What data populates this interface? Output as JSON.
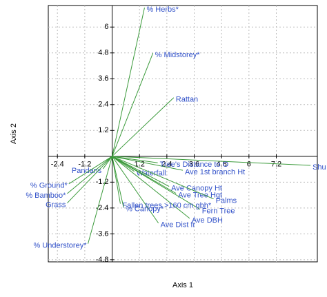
{
  "chart_data": {
    "type": "biplot",
    "x_label": "Axis 1",
    "y_label": "Axis 2",
    "labels": [
      "% Herbs*",
      "% Midstorey*",
      "Rattan",
      "Shu",
      "Ave 1st branch Ht",
      "Tree's Distance to O",
      "Waterfall",
      "Pandans",
      "Ave Canopy Ht",
      "Ave Tree Hgt",
      "Palms",
      "Fern Tree",
      "Ave DBH",
      "Ave Dist fr",
      "Fallen trees >160 cm gbh*",
      "% Canopy*",
      "% Ground*",
      "% Bamboo*",
      "Grass",
      "% Understorey*"
    ],
    "x": [
      1.42,
      1.79,
      2.7,
      8.7,
      3.1,
      2.0,
      0.97,
      -0.4,
      2.5,
      2.8,
      4.45,
      3.85,
      3.4,
      2.03,
      0.36,
      0.5,
      -1.9,
      -1.97,
      -1.97,
      -1.06
    ],
    "y": [
      6.9,
      4.79,
      2.72,
      -0.42,
      -0.65,
      -0.3,
      -0.7,
      -0.58,
      -1.4,
      -1.72,
      -1.98,
      -2.46,
      -2.88,
      -3.1,
      -2.2,
      -2.36,
      -1.28,
      -1.73,
      -2.17,
      -4.06
    ],
    "line_color": "#3a9a3a",
    "label_color": "#3050c8",
    "xlim": [
      -2.8,
      9.0
    ],
    "ylim": [
      -4.9,
      7.0
    ],
    "xticks": [
      -2.4,
      -1.2,
      1.2,
      2.4,
      3.6,
      4.8,
      6,
      7.2
    ],
    "yticks": [
      -4.8,
      -3.6,
      -2.4,
      -1.2,
      1.2,
      2.4,
      3.6,
      4.8,
      6
    ],
    "grid": true
  }
}
